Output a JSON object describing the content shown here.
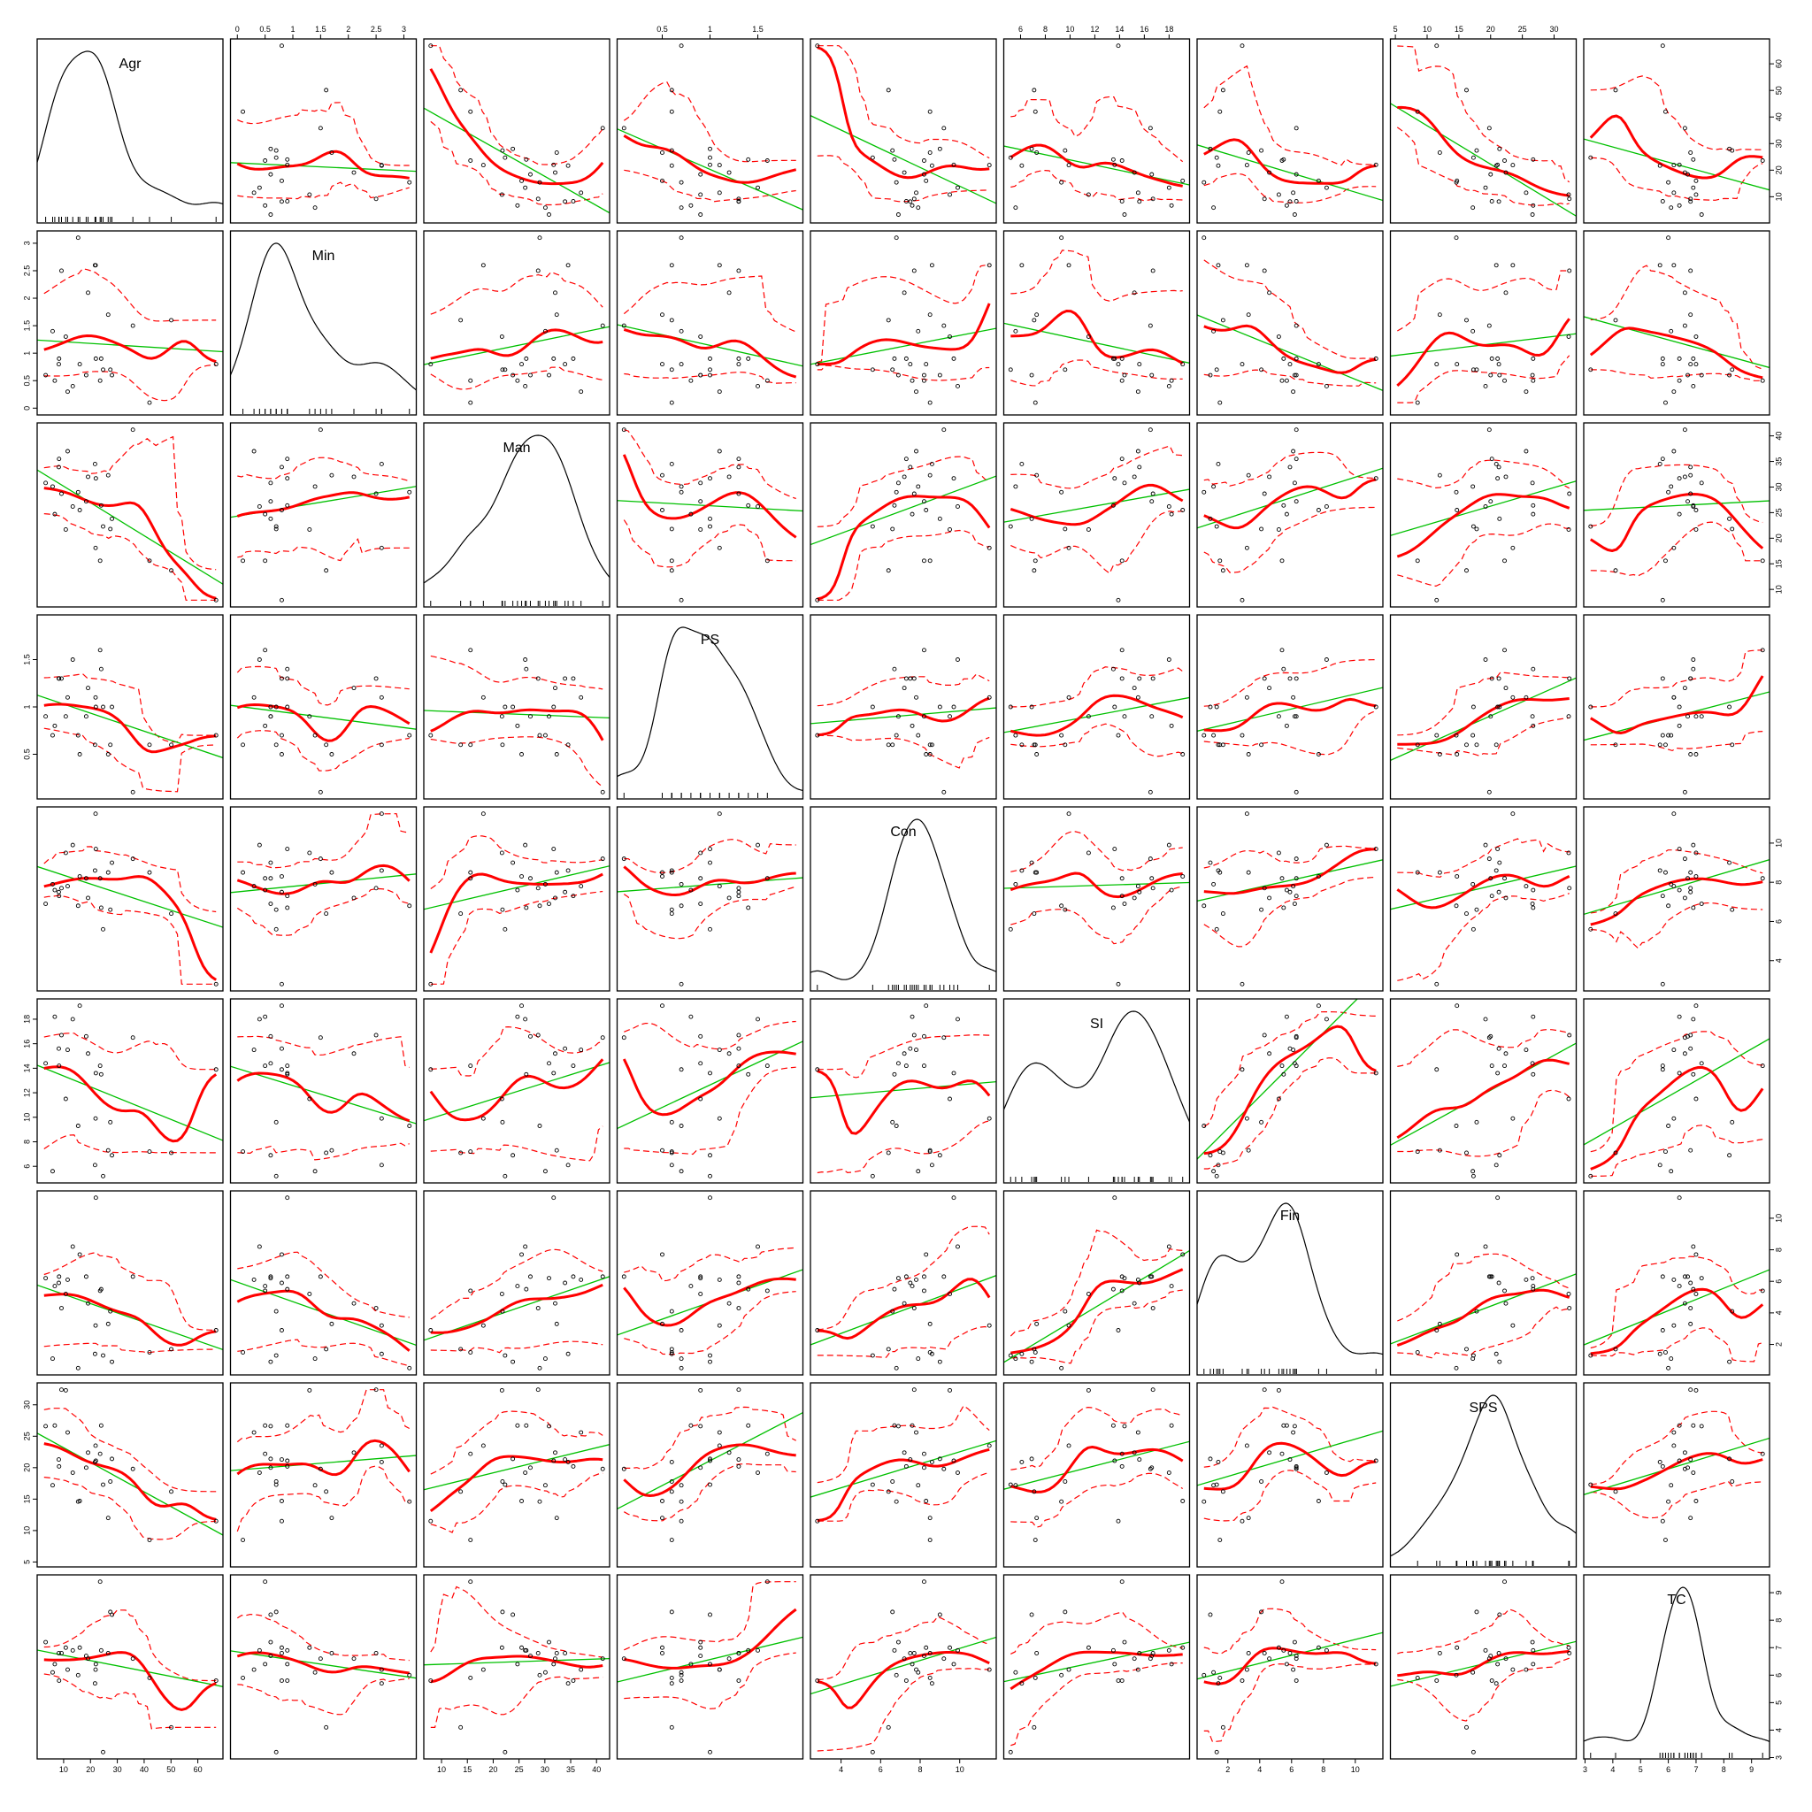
{
  "chart_data": {
    "type": "scatter",
    "title": "",
    "variables": [
      "Agr",
      "Min",
      "Man",
      "PS",
      "Con",
      "SI",
      "Fin",
      "SPS",
      "TC"
    ],
    "ranges": {
      "Agr": [
        2.7,
        66.8
      ],
      "Min": [
        0.0,
        3.1
      ],
      "Man": [
        7.9,
        41.2
      ],
      "PS": [
        0.1,
        1.9
      ],
      "Con": [
        2.8,
        11.5
      ],
      "SI": [
        5.2,
        19.1
      ],
      "Fin": [
        0.5,
        11.3
      ],
      "SPS": [
        5.3,
        32.4
      ],
      "TC": [
        3.2,
        9.4
      ]
    },
    "ticks": {
      "Agr": [
        10,
        20,
        30,
        40,
        50,
        60
      ],
      "Min": [
        0.0,
        0.5,
        1.0,
        1.5,
        2.0,
        2.5,
        3.0
      ],
      "Man": [
        10,
        15,
        20,
        25,
        30,
        35,
        40
      ],
      "PS": [
        0.5,
        1.0,
        1.5
      ],
      "Con": [
        4,
        6,
        8,
        10
      ],
      "SI": [
        6,
        8,
        10,
        12,
        14,
        16,
        18
      ],
      "Fin": [
        2,
        4,
        6,
        8,
        10
      ],
      "SPS": [
        5,
        10,
        15,
        20,
        25,
        30
      ],
      "TC": [
        3,
        4,
        5,
        6,
        7,
        8,
        9
      ]
    },
    "observations": {
      "Agr": [
        3.3,
        9.2,
        10.8,
        6.7,
        21.9,
        8.3,
        8.2,
        11.5,
        19.1,
        24.0,
        23.6,
        18.4,
        22.0,
        13.4,
        16.0,
        24.7,
        21.7,
        5.9,
        27.4,
        15.4,
        42.0,
        50.1,
        66.8,
        26.6,
        28.0,
        35.8
      ],
      "Min": [
        0.6,
        2.5,
        1.3,
        0.5,
        2.6,
        0.9,
        0.8,
        0.3,
        2.1,
        0.9,
        0.5,
        0.6,
        0.9,
        0.4,
        0.8,
        0.7,
        2.6,
        1.4,
        0.7,
        3.1,
        0.1,
        1.6,
        0.8,
        1.7,
        0.6,
        1.5
      ],
      "Man": [
        30.8,
        28.7,
        21.7,
        24.7,
        18.1,
        35.5,
        33.9,
        37.0,
        32.0,
        26.4,
        15.6,
        27.2,
        31.7,
        26.2,
        25.5,
        22.3,
        34.5,
        30.1,
        21.8,
        29.0,
        15.6,
        13.7,
        7.9,
        32.3,
        23.8,
        41.2
      ],
      "PS": [
        0.9,
        1.3,
        0.9,
        0.8,
        1.1,
        1.3,
        1.3,
        1.1,
        1.2,
        1.4,
        1.6,
        0.9,
        1.0,
        1.5,
        0.5,
        1.0,
        0.6,
        0.7,
        0.6,
        0.7,
        0.6,
        0.6,
        0.7,
        0.5,
        1.0,
        0.1
      ],
      "Con": [
        6.9,
        7.7,
        9.5,
        7.6,
        11.5,
        7.3,
        7.5,
        7.8,
        7.2,
        6.7,
        8.2,
        8.2,
        9.7,
        9.9,
        8.3,
        5.6,
        8.6,
        7.9,
        6.6,
        6.8,
        8.5,
        6.4,
        2.8,
        8.5,
        9.0,
        9.2
      ],
      "SI": [
        14.4,
        16.7,
        11.5,
        18.2,
        9.9,
        14.2,
        15.6,
        15.5,
        15.2,
        13.5,
        14.2,
        16.6,
        13.6,
        18.0,
        19.1,
        5.2,
        6.1,
        5.6,
        9.6,
        9.3,
        7.2,
        7.1,
        13.9,
        7.3,
        6.9,
        16.5
      ],
      "Fin": [
        6.2,
        4.3,
        5.2,
        5.7,
        3.2,
        6.3,
        5.9,
        6.1,
        4.6,
        5.5,
        5.4,
        6.3,
        11.3,
        8.2,
        7.7,
        1.3,
        1.4,
        1.1,
        4.1,
        0.5,
        1.5,
        1.7,
        2.9,
        3.3,
        0.9,
        6.3
      ],
      "SPS": [
        26.6,
        32.4,
        32.3,
        26.7,
        23.5,
        20.2,
        21.3,
        25.6,
        22.4,
        26.7,
        22.2,
        20.0,
        21.1,
        19.2,
        14.7,
        17.3,
        20.9,
        17.2,
        17.8,
        14.6,
        8.5,
        16.2,
        11.5,
        12.0,
        21.4,
        19.8
      ],
      "TC": [
        7.2,
        6.8,
        7.0,
        6.4,
        6.2,
        5.8,
        6.8,
        6.2,
        6.6,
        6.9,
        9.4,
        6.7,
        6.4,
        6.9,
        7.0,
        3.2,
        5.7,
        6.1,
        8.3,
        6.0,
        5.9,
        4.1,
        5.8,
        6.8,
        8.2,
        6.6
      ]
    },
    "overlays": {
      "points": "black open circles",
      "linear_fit": "green solid line",
      "smoother": "red thick line",
      "smoother_spread": "red dashed lines",
      "diagonal": "kernel density with rug"
    },
    "colors": {
      "points": "#000000",
      "linear_fit": "#00c000",
      "smoother": "#ff0000",
      "spread": "#ff0000"
    },
    "grid": false,
    "legend": "none"
  }
}
